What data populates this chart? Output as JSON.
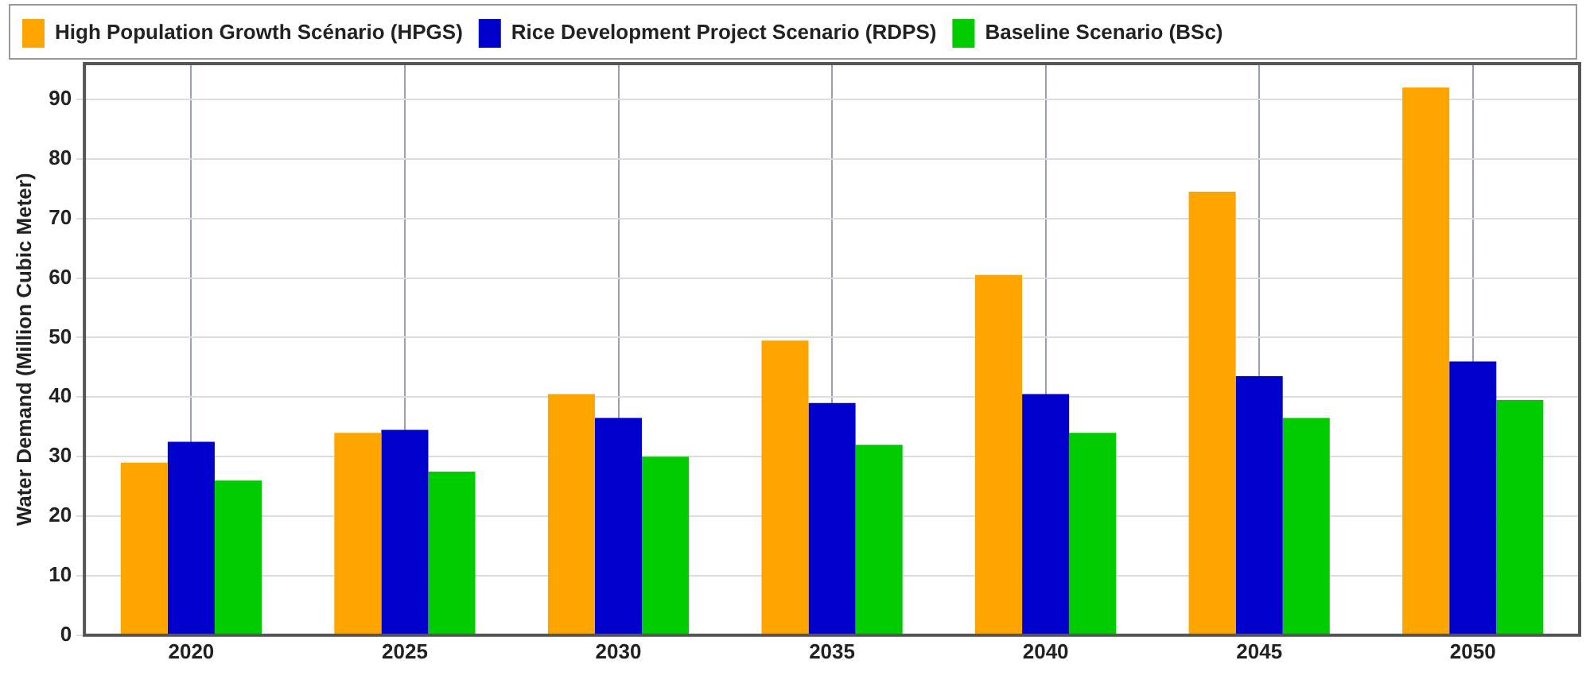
{
  "chart_data": {
    "type": "bar",
    "ylabel": "Water Demand (Million Cubic Meter)",
    "categories": [
      "2020",
      "2025",
      "2030",
      "2035",
      "2040",
      "2045",
      "2050"
    ],
    "series": [
      {
        "name": "High Population Growth Scénario (HPGS)",
        "color": "#ffa500",
        "values": [
          29,
          34,
          40.5,
          49.5,
          60.5,
          74.5,
          92
        ]
      },
      {
        "name": "Rice Development Project Scenario (RDPS)",
        "color": "#0000cc",
        "values": [
          32.5,
          34.5,
          36.5,
          39,
          40.5,
          43.5,
          46
        ]
      },
      {
        "name": "Baseline Scenario (BSc)",
        "color": "#00cc00",
        "values": [
          26,
          27.5,
          30,
          32,
          34,
          36.5,
          39.5
        ]
      }
    ],
    "ylim": [
      0,
      96
    ],
    "yticks": [
      0,
      10,
      20,
      30,
      40,
      50,
      60,
      70,
      80,
      90
    ],
    "grid": true,
    "legend": "top"
  }
}
